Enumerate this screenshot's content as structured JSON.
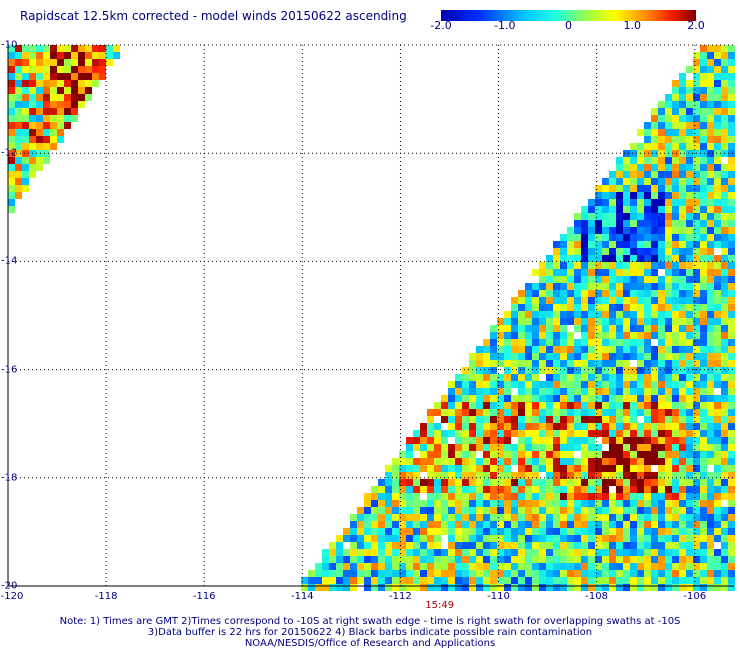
{
  "header": {
    "title": "Rapidscat 12.5km corrected - model winds 20150622 ascending"
  },
  "colorbar": {
    "ticks": [
      {
        "label": "-2.0",
        "value": -2.0
      },
      {
        "label": "-1.0",
        "value": -1.0
      },
      {
        "label": "0",
        "value": 0
      },
      {
        "label": "1.0",
        "value": 1.0
      },
      {
        "label": "2.0",
        "value": 2.0
      }
    ]
  },
  "map": {
    "lon_range": [
      -120,
      -105.2
    ],
    "lat_range": [
      -20,
      -10
    ],
    "lon_ticks": [
      {
        "label": "-120",
        "value": -120
      },
      {
        "label": "-118",
        "value": -118
      },
      {
        "label": "-116",
        "value": -116
      },
      {
        "label": "-114",
        "value": -114
      },
      {
        "label": "-112",
        "value": -112
      },
      {
        "label": "-110",
        "value": -110
      },
      {
        "label": "-108",
        "value": -108
      },
      {
        "label": "-106",
        "value": -106
      }
    ],
    "lat_ticks": [
      {
        "label": "-10",
        "value": -10
      },
      {
        "label": "-12",
        "value": -12
      },
      {
        "label": "-14",
        "value": -14
      },
      {
        "label": "-16",
        "value": -16
      },
      {
        "label": "-18",
        "value": -18
      },
      {
        "label": "-20",
        "value": -20
      }
    ],
    "grid": "dotted",
    "time_label": {
      "text": "15:49",
      "lon": -111.2
    }
  },
  "footer": {
    "note_line1": "Note: 1) Times are GMT 2)Times correspond to -10S at right swath edge - time is right swath for overlapping swaths at -10S",
    "note_line2": "3)Data buffer is 22 hrs for 20150622 4) Black barbs indicate possible rain contamination",
    "note_line3": "NOAA/NESDIS/Office of Research and Applications"
  },
  "colors": {
    "text": "#000080",
    "time": "#aa0000",
    "grid": "#000000"
  }
}
